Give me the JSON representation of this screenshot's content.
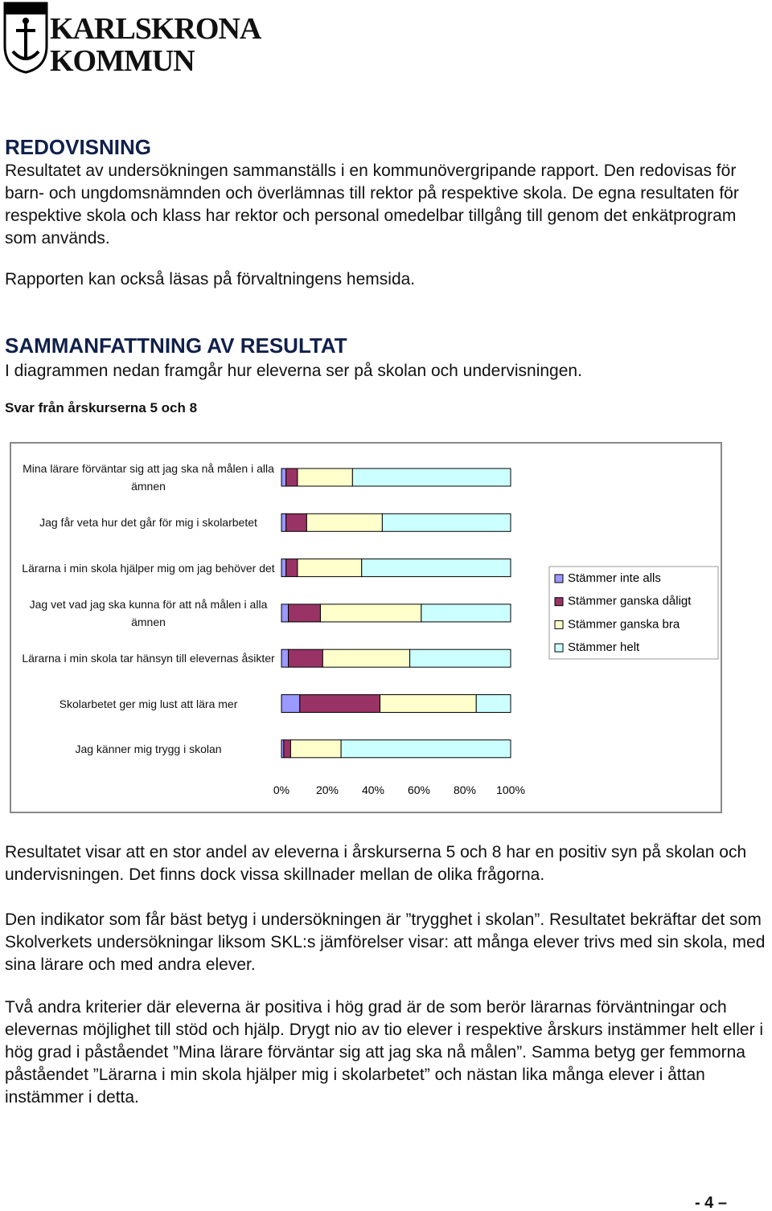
{
  "header": {
    "logo_line1": "KARLSKRONA",
    "logo_line2": "KOMMUN"
  },
  "section1": {
    "heading": "REDOVISNING",
    "paragraphs": [
      "Resultatet av undersökningen sammanställs i en kommunövergripande rapport. Den redovisas för barn- och ungdomsnämnden och överlämnas till rektor på respektive skola. De egna resultaten för respektive skola och klass har rektor och personal omedelbar tillgång till genom det enkätprogram som används.",
      "Rapporten kan också läsas på förvaltningens hemsida."
    ]
  },
  "section2": {
    "heading": "SAMMANFATTNING AV RESULTAT",
    "intro": "I diagrammen nedan framgår hur eleverna ser på skolan och undervisningen.",
    "subheading": "Svar från årskurserna 5 och 8"
  },
  "chart_data": {
    "type": "bar",
    "horizontal": true,
    "stacked": true,
    "legend": "right",
    "categories": [
      "Mina lärare förväntar sig att jag ska nå målen i alla ämnen",
      "Jag får veta hur det går för mig i skolarbetet",
      "Lärarna i min skola hjälper mig om jag behöver det",
      "Jag vet vad jag ska kunna för att nå målen i alla ämnen",
      "Lärarna i min skola tar hänsyn till elevernas åsikter",
      "Skolarbetet ger mig lust att lära mer",
      "Jag känner mig trygg i skolan"
    ],
    "series": [
      {
        "name": "Stämmer inte alls",
        "color": "#9999ff",
        "values": [
          2,
          2,
          2,
          3,
          3,
          8,
          1
        ]
      },
      {
        "name": "Stämmer ganska dåligt",
        "color": "#993366",
        "values": [
          5,
          9,
          5,
          14,
          15,
          35,
          3
        ]
      },
      {
        "name": "Stämmer ganska bra",
        "color": "#ffffcc",
        "values": [
          24,
          33,
          28,
          44,
          38,
          42,
          22
        ]
      },
      {
        "name": "Stämmer helt",
        "color": "#ccffff",
        "values": [
          69,
          56,
          65,
          39,
          44,
          15,
          74
        ]
      }
    ],
    "xlim": [
      0,
      100
    ],
    "xticks": [
      {
        "value": 0,
        "label": "0%"
      },
      {
        "value": 20,
        "label": "20%"
      },
      {
        "value": 40,
        "label": "40%"
      },
      {
        "value": 60,
        "label": "60%"
      },
      {
        "value": 80,
        "label": "80%"
      },
      {
        "value": 100,
        "label": "100%"
      }
    ]
  },
  "conclusion": {
    "paragraphs": [
      "Resultatet visar att en stor andel av eleverna i årskurserna 5 och 8 har en positiv syn på skolan och undervisningen. Det finns dock vissa skillnader mellan de olika frågorna.",
      "Den indikator som får bäst betyg i undersökningen är ”trygghet i skolan”. Resultatet bekräftar det som Skolverkets undersökningar liksom SKL:s jämförelser visar: att många elever trivs med sin skola, med sina lärare och med andra elever.",
      "Två andra kriterier där eleverna är positiva i hög grad är de som berör lärarnas förväntningar och elevernas möjlighet till stöd och hjälp. Drygt nio av tio elever i respektive årskurs instämmer helt eller i hög grad i påståendet ”Mina lärare förväntar sig att jag ska nå målen”. Samma betyg ger femmorna påståendet ”Lärarna i min skola hjälper mig i skolarbetet” och nästan lika många elever i åttan instämmer i detta."
    ]
  },
  "footer": {
    "page_number": "- 4 –"
  }
}
